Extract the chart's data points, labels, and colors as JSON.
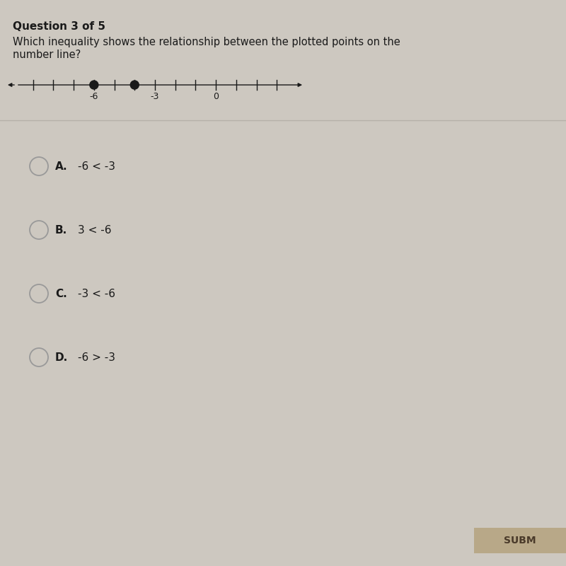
{
  "bg_color": "#cdc8c0",
  "title": "Question 3 of 5",
  "question_line1": "Which inequality shows the relationship between the plotted points on the",
  "question_line2": "number line?",
  "number_line": {
    "x_min": -10,
    "x_max": 4,
    "tick_positions": [
      -9,
      -8,
      -7,
      -6,
      -5,
      -4,
      -3,
      -2,
      -1,
      0,
      1,
      2,
      3
    ],
    "labeled_ticks": [
      -6,
      -3,
      0
    ],
    "points": [
      -6,
      -4
    ],
    "point_color": "#1a1a1a"
  },
  "choices": [
    {
      "label": "A.",
      "text": "-6 < -3"
    },
    {
      "label": "B.",
      "text": "3 < -6"
    },
    {
      "label": "C.",
      "text": "-3 < -6"
    },
    {
      "label": "D.",
      "text": "-6 > -3"
    }
  ],
  "divider_color": "#b5b0a8",
  "circle_bg": "#cdc8c0",
  "circle_edge": "#999999",
  "submit_btn_color": "#b8a888",
  "submit_btn_text": "SUBM",
  "title_fontsize": 11,
  "question_fontsize": 10.5,
  "choice_fontsize": 11,
  "nl_label_fontsize": 9
}
